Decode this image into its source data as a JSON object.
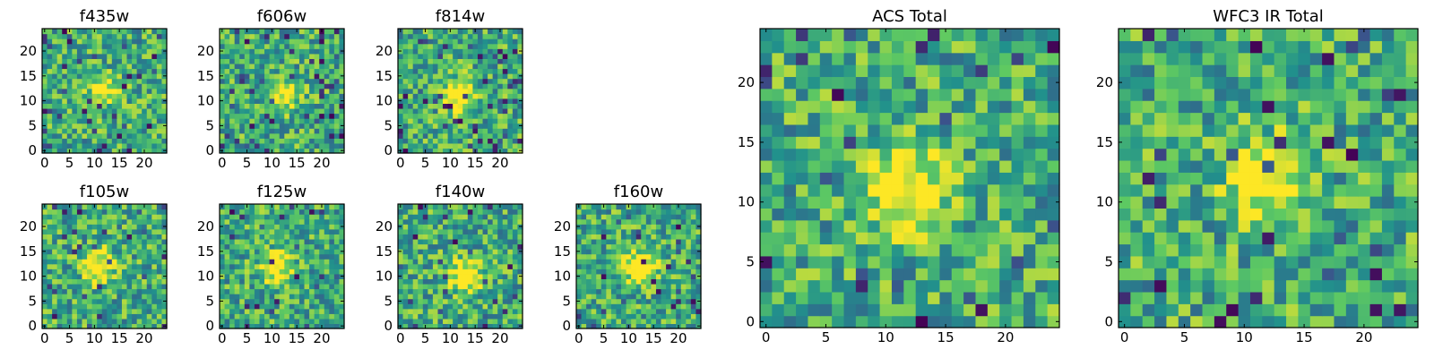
{
  "figure": {
    "description_type": "image-grid",
    "colormap": [
      "#440154",
      "#3b528b",
      "#21918c",
      "#5ec962",
      "#fde725"
    ]
  },
  "chart_data": [
    {
      "id": "f435w",
      "type": "heatmap",
      "title": "f435w",
      "grid_size": 25,
      "xlim": [
        0,
        24
      ],
      "ylim": [
        0,
        24
      ],
      "xticks": [
        0,
        5,
        10,
        15,
        20
      ],
      "yticks": [
        0,
        5,
        10,
        15,
        20
      ],
      "seed": 11,
      "blob": {
        "x": 12,
        "y": 12,
        "strength": 0.35
      },
      "dark_fraction": 0.05
    },
    {
      "id": "f606w",
      "type": "heatmap",
      "title": "f606w",
      "grid_size": 25,
      "xlim": [
        0,
        24
      ],
      "ylim": [
        0,
        24
      ],
      "xticks": [
        0,
        5,
        10,
        15,
        20
      ],
      "yticks": [
        0,
        5,
        10,
        15,
        20
      ],
      "seed": 23,
      "blob": {
        "x": 12,
        "y": 11,
        "strength": 0.45
      },
      "dark_fraction": 0.07
    },
    {
      "id": "f814w",
      "type": "heatmap",
      "title": "f814w",
      "grid_size": 25,
      "xlim": [
        0,
        24
      ],
      "ylim": [
        0,
        24
      ],
      "xticks": [
        0,
        5,
        10,
        15,
        20
      ],
      "yticks": [
        0,
        5,
        10,
        15,
        20
      ],
      "seed": 37,
      "blob": {
        "x": 12,
        "y": 11,
        "strength": 0.55
      },
      "dark_fraction": 0.07
    },
    {
      "id": "f105w",
      "type": "heatmap",
      "title": "f105w",
      "grid_size": 25,
      "xlim": [
        0,
        24
      ],
      "ylim": [
        0,
        24
      ],
      "xticks": [
        0,
        5,
        10,
        15,
        20
      ],
      "yticks": [
        0,
        5,
        10,
        15,
        20
      ],
      "seed": 41,
      "blob": {
        "x": 11,
        "y": 12,
        "strength": 0.5
      },
      "dark_fraction": 0.05
    },
    {
      "id": "f125w",
      "type": "heatmap",
      "title": "f125w",
      "grid_size": 25,
      "xlim": [
        0,
        24
      ],
      "ylim": [
        0,
        24
      ],
      "xticks": [
        0,
        5,
        10,
        15,
        20
      ],
      "yticks": [
        0,
        5,
        10,
        15,
        20
      ],
      "seed": 53,
      "blob": {
        "x": 11,
        "y": 12,
        "strength": 0.5
      },
      "dark_fraction": 0.04
    },
    {
      "id": "f140w",
      "type": "heatmap",
      "title": "f140w",
      "grid_size": 25,
      "xlim": [
        0,
        24
      ],
      "ylim": [
        0,
        24
      ],
      "xticks": [
        0,
        5,
        10,
        15,
        20
      ],
      "yticks": [
        0,
        5,
        10,
        15,
        20
      ],
      "seed": 67,
      "blob": {
        "x": 13,
        "y": 10,
        "strength": 0.55
      },
      "dark_fraction": 0.03
    },
    {
      "id": "f160w",
      "type": "heatmap",
      "title": "f160w",
      "grid_size": 25,
      "xlim": [
        0,
        24
      ],
      "ylim": [
        0,
        24
      ],
      "xticks": [
        0,
        5,
        10,
        15,
        20
      ],
      "yticks": [
        0,
        5,
        10,
        15,
        20
      ],
      "seed": 79,
      "blob": {
        "x": 12,
        "y": 12,
        "strength": 0.55
      },
      "dark_fraction": 0.04
    },
    {
      "id": "acs_total",
      "type": "heatmap",
      "title": "ACS Total",
      "grid_size": 25,
      "xlim": [
        0,
        24
      ],
      "ylim": [
        0,
        24
      ],
      "xticks": [
        0,
        5,
        10,
        15,
        20
      ],
      "yticks": [
        0,
        5,
        10,
        15,
        20
      ],
      "seed": 97,
      "blob": {
        "x": 12,
        "y": 11,
        "strength": 0.6
      },
      "dark_fraction": 0.04
    },
    {
      "id": "wfc3_ir_total",
      "type": "heatmap",
      "title": "WFC3 IR Total",
      "grid_size": 25,
      "xlim": [
        0,
        24
      ],
      "ylim": [
        0,
        24
      ],
      "xticks": [
        0,
        5,
        10,
        15,
        20
      ],
      "yticks": [
        0,
        5,
        10,
        15,
        20
      ],
      "seed": 113,
      "blob": {
        "x": 12,
        "y": 12,
        "strength": 0.55
      },
      "dark_fraction": 0.05
    }
  ]
}
